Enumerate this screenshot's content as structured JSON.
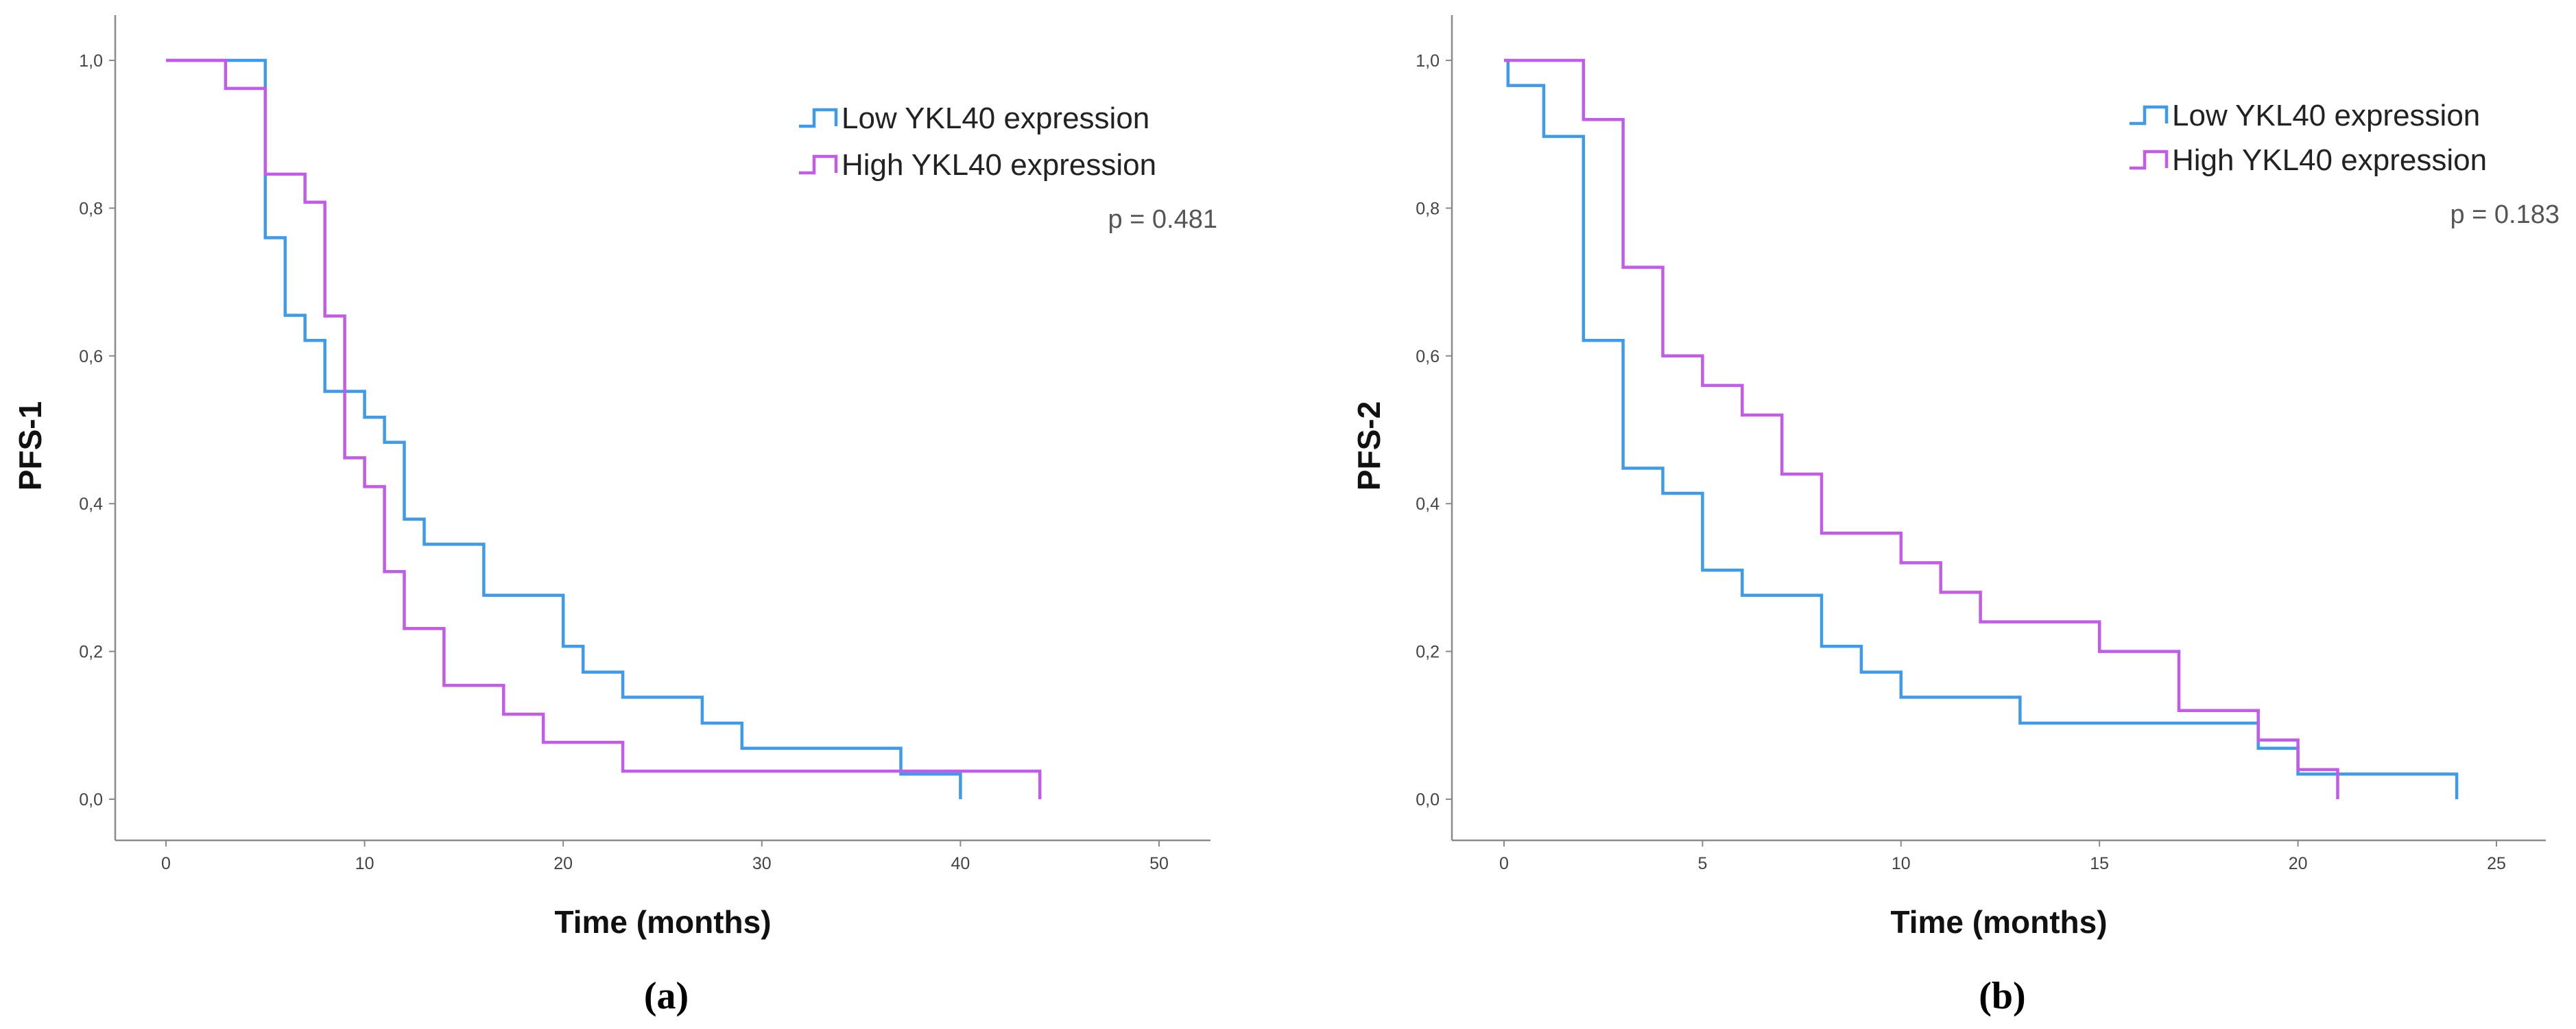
{
  "chart_data": [
    {
      "type": "line",
      "panel_label": "(a)",
      "xlabel": "Time (months)",
      "ylabel": "PFS-1",
      "xlim": [
        0,
        50
      ],
      "ylim": [
        0,
        1
      ],
      "x_ticks": [
        "0",
        "10",
        "20",
        "30",
        "40",
        "50"
      ],
      "x_tick_values": [
        0,
        10,
        20,
        30,
        40,
        50
      ],
      "y_ticks": [
        "0,0",
        "0,2",
        "0,4",
        "0,6",
        "0,8",
        "1,0"
      ],
      "y_tick_values": [
        0,
        0.2,
        0.4,
        0.6,
        0.8,
        1.0
      ],
      "grid": false,
      "legend_position": "top-right",
      "annotation": "p = 0.481",
      "series": [
        {
          "name": "Low YKL40 expression",
          "color": "#3d9be9",
          "x": [
            0,
            5,
            6,
            7,
            8,
            10,
            11,
            12,
            13,
            16,
            20,
            21,
            23,
            27,
            29,
            37,
            40
          ],
          "y": [
            1.0,
            0.76,
            0.655,
            0.621,
            0.552,
            0.517,
            0.483,
            0.379,
            0.345,
            0.276,
            0.207,
            0.172,
            0.138,
            0.103,
            0.069,
            0.034,
            0.0
          ]
        },
        {
          "name": "High YKL40 expression",
          "color": "#c25bea",
          "x": [
            0,
            3,
            5,
            7,
            8,
            9,
            10,
            11,
            12,
            14,
            17,
            19,
            23,
            44
          ],
          "y": [
            1.0,
            0.962,
            0.846,
            0.808,
            0.654,
            0.462,
            0.423,
            0.308,
            0.231,
            0.154,
            0.115,
            0.077,
            0.038,
            0.0
          ]
        }
      ]
    },
    {
      "type": "line",
      "panel_label": "(b)",
      "xlabel": "Time (months)",
      "ylabel": "PFS-2",
      "xlim": [
        0,
        25
      ],
      "ylim": [
        0,
        1
      ],
      "x_ticks": [
        "0",
        "5",
        "10",
        "15",
        "20",
        "25"
      ],
      "x_tick_values": [
        0,
        5,
        10,
        15,
        20,
        25
      ],
      "y_ticks": [
        "0,0",
        "0,2",
        "0,4",
        "0,6",
        "0,8",
        "1,0"
      ],
      "y_tick_values": [
        0,
        0.2,
        0.4,
        0.6,
        0.8,
        1.0
      ],
      "grid": false,
      "legend_position": "top-right",
      "annotation": "p = 0.183",
      "series": [
        {
          "name": "Low YKL40 expression",
          "color": "#3d9be9",
          "x": [
            0,
            0.1,
            1,
            2,
            3,
            4,
            5,
            6,
            8,
            9,
            10,
            13,
            19,
            20,
            24
          ],
          "y": [
            1.0,
            0.966,
            0.897,
            0.621,
            0.448,
            0.414,
            0.31,
            0.276,
            0.207,
            0.172,
            0.138,
            0.103,
            0.069,
            0.034,
            0.0
          ]
        },
        {
          "name": "High YKL40 expression",
          "color": "#c25bea",
          "x": [
            0,
            2,
            3,
            4,
            5,
            6,
            7,
            8,
            10,
            11,
            12,
            15,
            17,
            19,
            20,
            21
          ],
          "y": [
            1.0,
            0.92,
            0.72,
            0.6,
            0.56,
            0.52,
            0.44,
            0.36,
            0.32,
            0.28,
            0.24,
            0.2,
            0.12,
            0.08,
            0.04,
            0.0
          ]
        }
      ]
    }
  ]
}
